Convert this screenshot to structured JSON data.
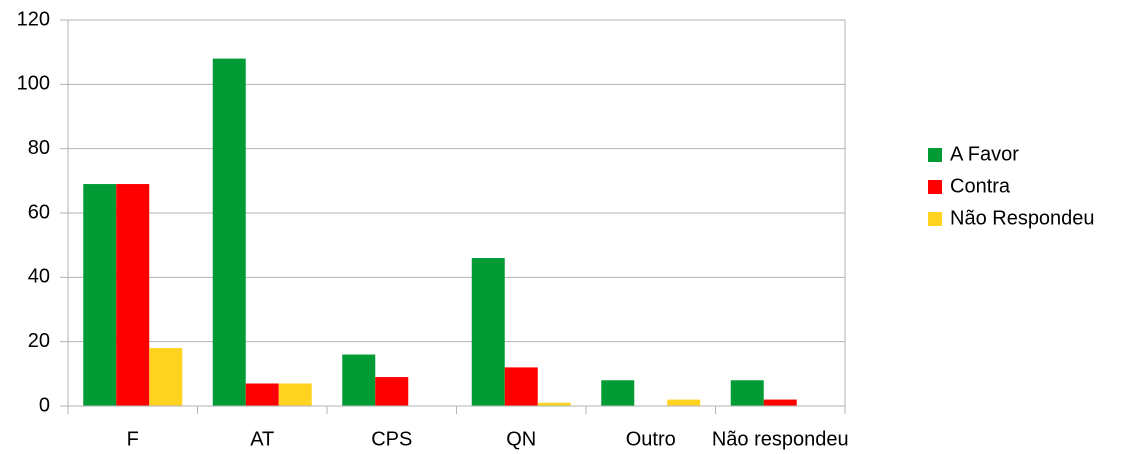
{
  "chart_data": {
    "type": "bar",
    "categories": [
      "F",
      "AT",
      "CPS",
      "QN",
      "Outro",
      "Não respondeu"
    ],
    "series": [
      {
        "name": "A Favor",
        "color": "#009b35",
        "values": [
          69,
          108,
          16,
          46,
          8,
          8
        ]
      },
      {
        "name": "Contra",
        "color": "#ff0000",
        "values": [
          69,
          7,
          9,
          12,
          0,
          2
        ]
      },
      {
        "name": "Não Respondeu",
        "color": "#ffd320",
        "values": [
          18,
          7,
          0,
          1,
          2,
          0
        ]
      }
    ],
    "ylim": [
      0,
      120
    ],
    "yticks": [
      0,
      20,
      40,
      60,
      80,
      100,
      120
    ],
    "grid": true,
    "legend": "right"
  }
}
